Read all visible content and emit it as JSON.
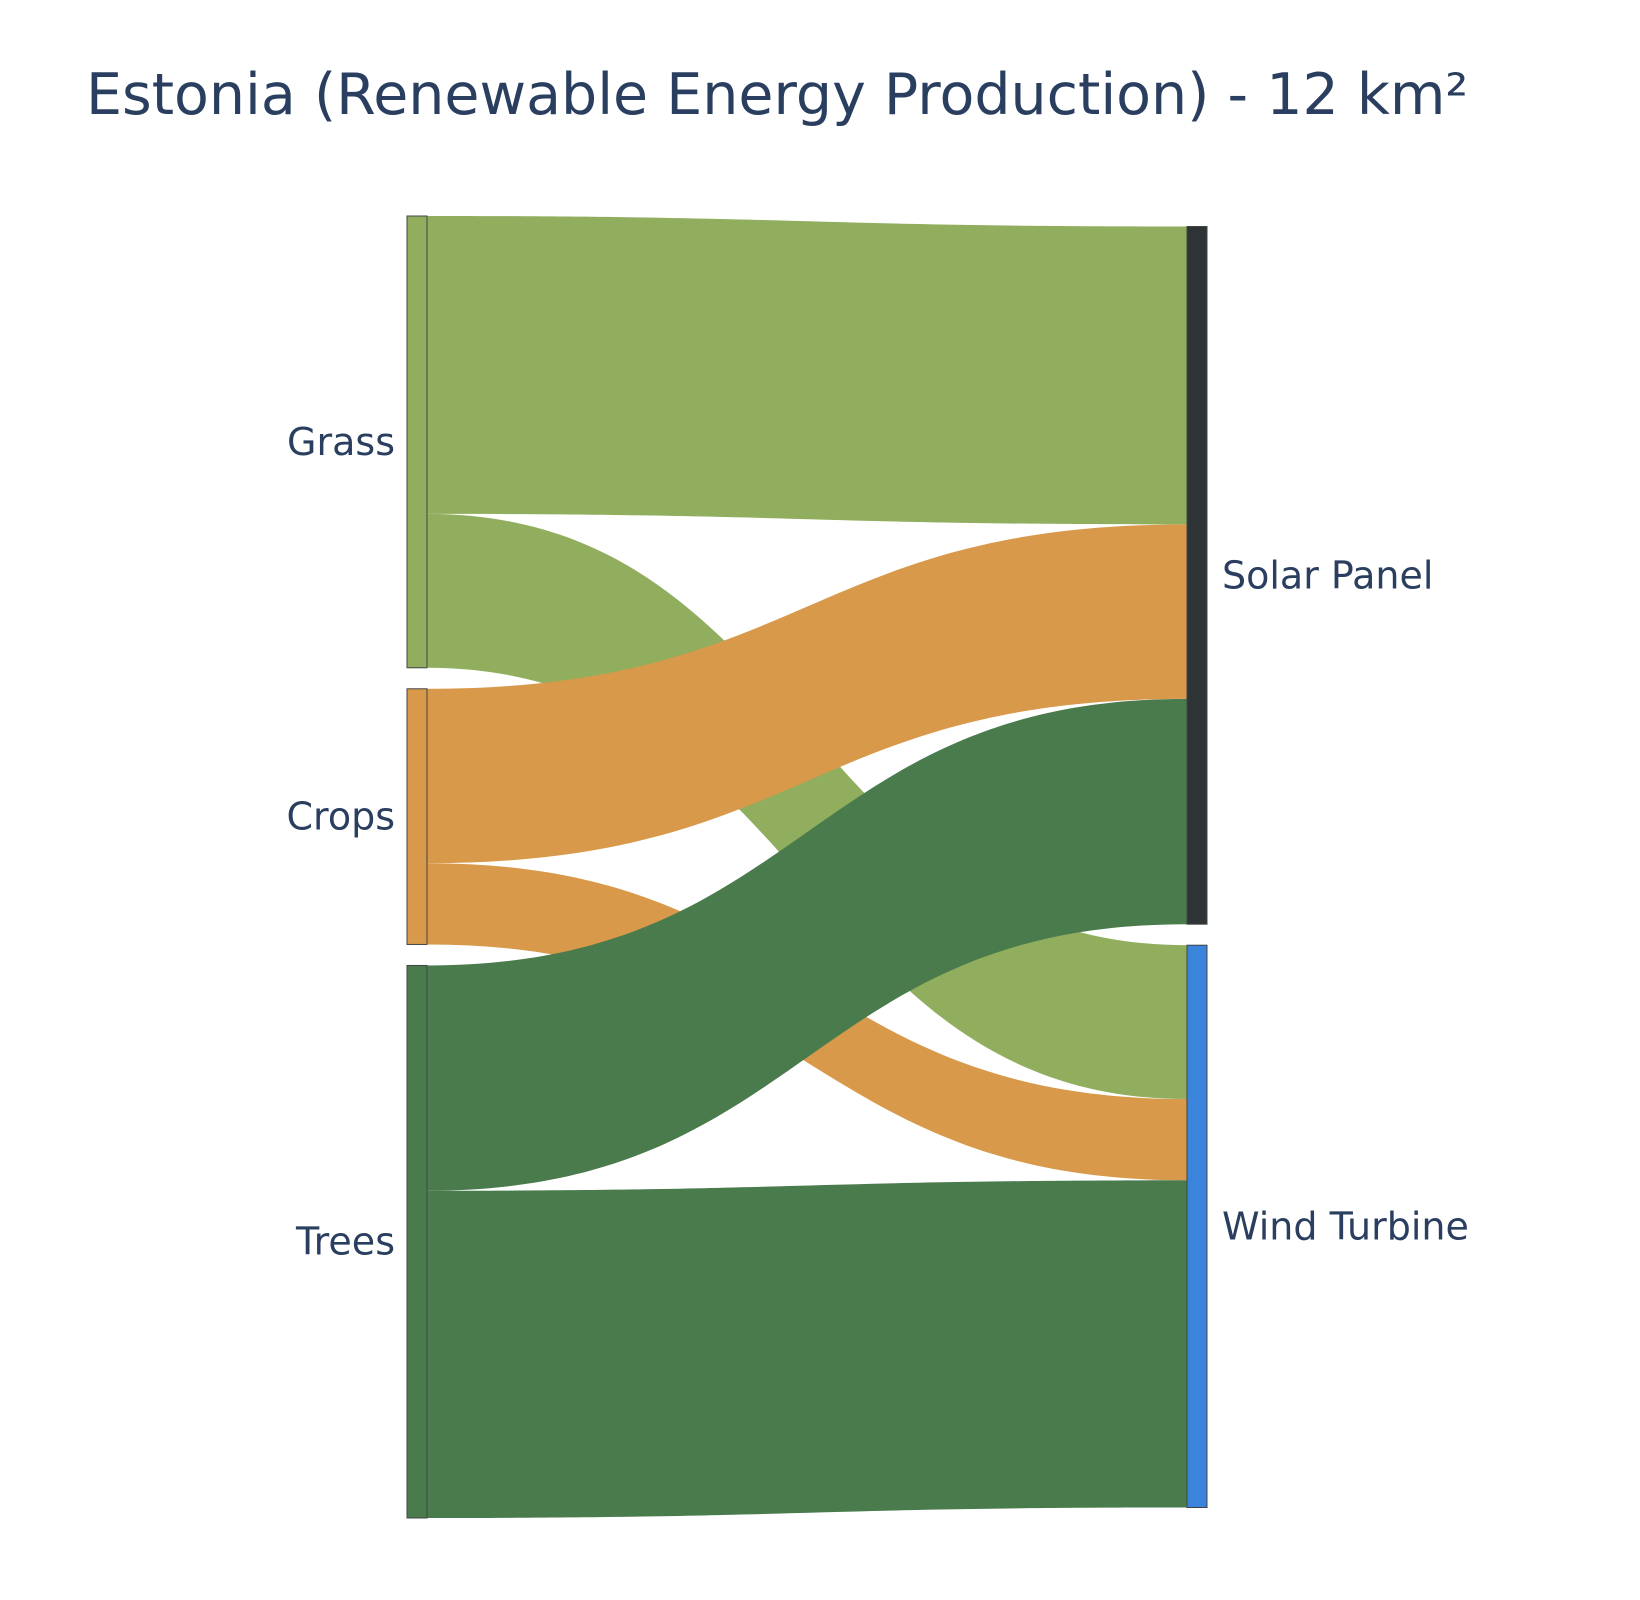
{
  "chart_data": {
    "type": "sankey",
    "title": "Estonia (Renewable Energy Production) - 12 km²",
    "sources": [
      {
        "name": "Grass",
        "color": "#91ae5f"
      },
      {
        "name": "Crops",
        "color": "#d8994a"
      },
      {
        "name": "Trees",
        "color": "#4a7b4d"
      }
    ],
    "targets": [
      {
        "name": "Solar Panel",
        "color": "#2e3436"
      },
      {
        "name": "Wind Turbine",
        "color": "#3a84dc"
      }
    ],
    "links": [
      {
        "source": "Grass",
        "target": "Solar Panel",
        "value": 2.75
      },
      {
        "source": "Grass",
        "target": "Wind Turbine",
        "value": 1.42
      },
      {
        "source": "Crops",
        "target": "Solar Panel",
        "value": 1.61
      },
      {
        "source": "Crops",
        "target": "Wind Turbine",
        "value": 0.75
      },
      {
        "source": "Trees",
        "target": "Solar Panel",
        "value": 2.08
      },
      {
        "source": "Trees",
        "target": "Wind Turbine",
        "value": 3.02
      }
    ]
  }
}
